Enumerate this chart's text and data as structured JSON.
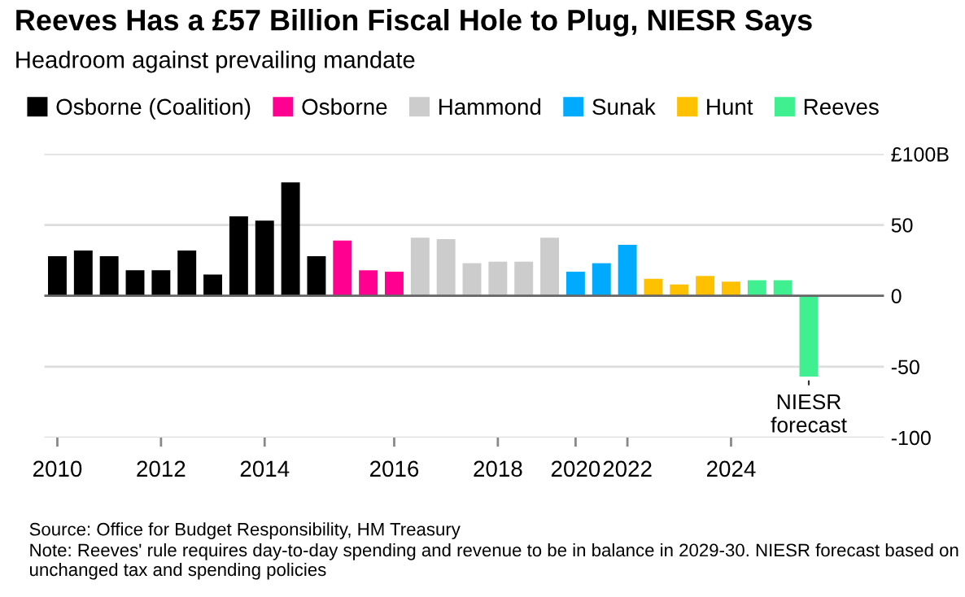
{
  "chart_data": {
    "type": "bar",
    "title": "Reeves Has a £57 Billion Fiscal Hole to Plug, NIESR Says",
    "subtitle": "Headroom against prevailing mandate",
    "categories": [
      "2010",
      null,
      null,
      null,
      "2012",
      null,
      null,
      null,
      "2014",
      null,
      null,
      null,
      null,
      "2016",
      null,
      null,
      null,
      "2018",
      null,
      null,
      "2020",
      null,
      "2022",
      null,
      null,
      null,
      "2024",
      null,
      null,
      null
    ],
    "series": [
      {
        "name": "Osborne (Coalition)",
        "color": "#000000",
        "values": [
          28,
          32,
          28,
          18,
          18,
          32,
          15,
          56,
          53,
          80,
          28,
          null,
          null,
          null,
          null,
          null,
          null,
          null,
          null,
          null,
          null,
          null,
          null,
          null,
          null,
          null,
          null,
          null,
          null,
          null
        ]
      },
      {
        "name": "Osborne",
        "color": "#ff0090",
        "values": [
          null,
          null,
          null,
          null,
          null,
          null,
          null,
          null,
          null,
          null,
          null,
          39,
          18,
          17,
          null,
          null,
          null,
          null,
          null,
          null,
          null,
          null,
          null,
          null,
          null,
          null,
          null,
          null,
          null,
          null
        ]
      },
      {
        "name": "Hammond",
        "color": "#cccccc",
        "values": [
          null,
          null,
          null,
          null,
          null,
          null,
          null,
          null,
          null,
          null,
          null,
          null,
          null,
          null,
          41,
          40,
          23,
          24,
          24,
          41,
          null,
          null,
          null,
          null,
          null,
          null,
          null,
          null,
          null,
          null
        ]
      },
      {
        "name": "Sunak",
        "color": "#00aaff",
        "values": [
          null,
          null,
          null,
          null,
          null,
          null,
          null,
          null,
          null,
          null,
          null,
          null,
          null,
          null,
          null,
          null,
          null,
          null,
          null,
          null,
          17,
          23,
          36,
          null,
          null,
          null,
          null,
          null,
          null,
          null
        ]
      },
      {
        "name": "Hunt",
        "color": "#ffc000",
        "values": [
          null,
          null,
          null,
          null,
          null,
          null,
          null,
          null,
          null,
          null,
          null,
          null,
          null,
          null,
          null,
          null,
          null,
          null,
          null,
          null,
          null,
          null,
          null,
          12,
          8,
          14,
          10,
          null,
          null,
          null
        ]
      },
      {
        "name": "Reeves",
        "color": "#40f090",
        "values": [
          null,
          null,
          null,
          null,
          null,
          null,
          null,
          null,
          null,
          null,
          null,
          null,
          null,
          null,
          null,
          null,
          null,
          null,
          null,
          null,
          null,
          null,
          null,
          null,
          null,
          null,
          null,
          11,
          11,
          -57
        ]
      }
    ],
    "ylim": [
      -100,
      100
    ],
    "yticks": [
      {
        "value": 100,
        "label": "£100B"
      },
      50,
      0,
      -50,
      -100
    ],
    "grid": "y",
    "legend": "top",
    "annotations": [
      {
        "text": "NIESR\nforecast",
        "y": -57
      },
      "Source: Office for Budget Responsibility, HM Treasury",
      "Note: Reeves' rule requires day-to-day spending and revenue to be in balance in 2029-30. NIESR forecast based on unchanged tax and spending policies"
    ]
  }
}
